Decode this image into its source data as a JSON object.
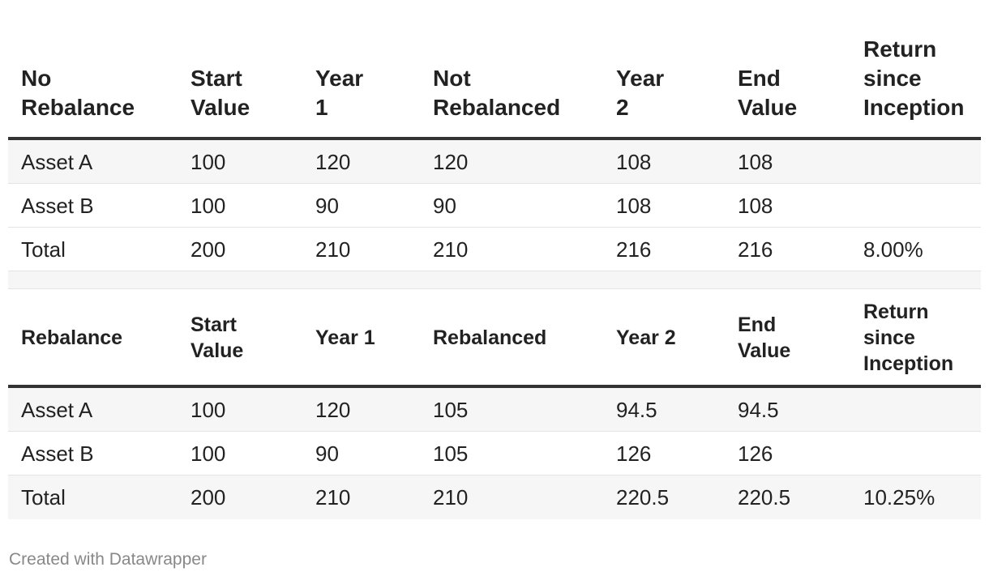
{
  "chart_data": [
    {
      "type": "table",
      "columns": [
        "No\nRebalance",
        "Start\nValue",
        "Year\n1",
        "Not\nRebalanced",
        "Year\n2",
        "End\nValue",
        "Return\nsince\nInception"
      ],
      "rows": [
        [
          "Asset A",
          "100",
          "120",
          "120",
          "108",
          "108",
          ""
        ],
        [
          "Asset B",
          "100",
          "90",
          "90",
          "108",
          "108",
          ""
        ],
        [
          "Total",
          "200",
          "210",
          "210",
          "216",
          "216",
          "8.00%"
        ]
      ]
    },
    {
      "type": "table",
      "columns": [
        "Rebalance",
        "Start\nValue",
        "Year 1",
        "Rebalanced",
        "Year 2",
        "End\nValue",
        "Return\nsince\nInception"
      ],
      "rows": [
        [
          "Asset A",
          "100",
          "120",
          "105",
          "94.5",
          "94.5",
          ""
        ],
        [
          "Asset B",
          "100",
          "90",
          "105",
          "126",
          "126",
          ""
        ],
        [
          "Total",
          "200",
          "210",
          "210",
          "220.5",
          "220.5",
          "10.25%"
        ]
      ]
    }
  ],
  "footer": {
    "credit": "Created with Datawrapper"
  }
}
